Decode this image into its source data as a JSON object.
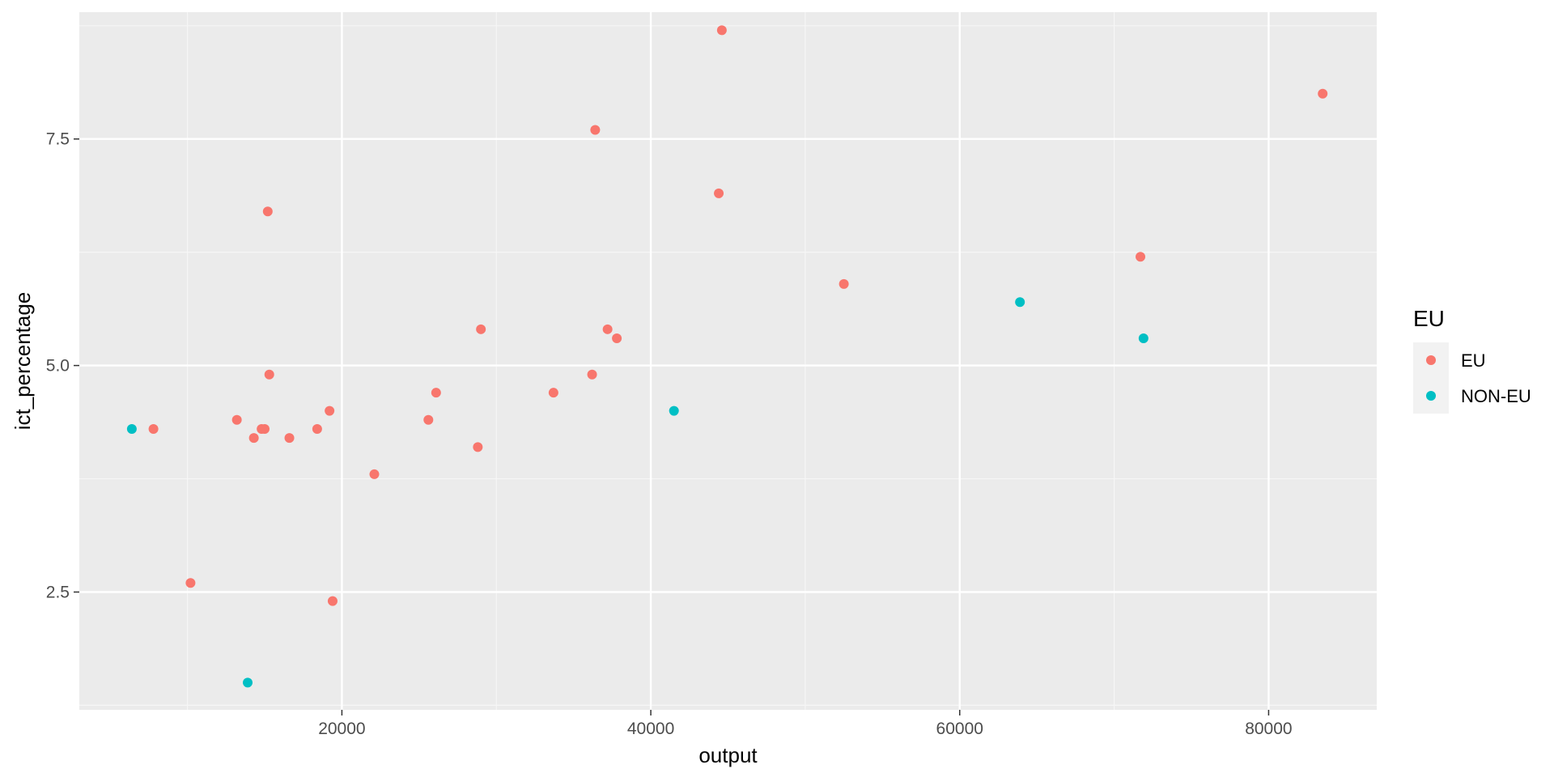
{
  "chart_data": {
    "type": "scatter",
    "title": "",
    "xlabel": "output",
    "ylabel": "ict_percentage",
    "xlim": [
      3000,
      87000
    ],
    "ylim": [
      1.2,
      8.9
    ],
    "x_ticks": [
      20000,
      40000,
      60000,
      80000
    ],
    "x_tick_labels": [
      "20000",
      "40000",
      "60000",
      "80000"
    ],
    "y_ticks": [
      2.5,
      5.0,
      7.5
    ],
    "y_tick_labels": [
      "2.5",
      "5.0",
      "7.5"
    ],
    "x_minor_ticks": [
      10000,
      30000,
      50000,
      70000
    ],
    "y_minor_ticks": [
      1.25,
      3.75,
      6.25,
      8.75
    ],
    "grid": true,
    "legend": {
      "title": "EU",
      "position": "right",
      "entries": [
        {
          "label": "EU",
          "color": "#F8766D"
        },
        {
          "label": "NON-EU",
          "color": "#00BFC4"
        }
      ]
    },
    "colors": {
      "panel_background": "#EBEBEB",
      "grid_major": "#FFFFFF",
      "grid_minor": "#F6F6F6",
      "legend_key_background": "#F2F2F2",
      "tick_mark": "#333333"
    },
    "series": [
      {
        "name": "EU",
        "color": "#F8766D",
        "points": [
          {
            "x": 7800,
            "y": 4.3
          },
          {
            "x": 10200,
            "y": 2.6
          },
          {
            "x": 13200,
            "y": 4.4
          },
          {
            "x": 14300,
            "y": 4.2
          },
          {
            "x": 14800,
            "y": 4.3
          },
          {
            "x": 15000,
            "y": 4.3
          },
          {
            "x": 15200,
            "y": 6.7
          },
          {
            "x": 15300,
            "y": 4.9
          },
          {
            "x": 16600,
            "y": 4.2
          },
          {
            "x": 18400,
            "y": 4.3
          },
          {
            "x": 19200,
            "y": 4.5
          },
          {
            "x": 19400,
            "y": 2.4
          },
          {
            "x": 22100,
            "y": 3.8
          },
          {
            "x": 25600,
            "y": 4.4
          },
          {
            "x": 26100,
            "y": 4.7
          },
          {
            "x": 28800,
            "y": 4.1
          },
          {
            "x": 29000,
            "y": 5.4
          },
          {
            "x": 33700,
            "y": 4.7
          },
          {
            "x": 36200,
            "y": 4.9
          },
          {
            "x": 36400,
            "y": 7.6
          },
          {
            "x": 37200,
            "y": 5.4
          },
          {
            "x": 37800,
            "y": 5.3
          },
          {
            "x": 44400,
            "y": 6.9
          },
          {
            "x": 44600,
            "y": 8.7
          },
          {
            "x": 52500,
            "y": 5.9
          },
          {
            "x": 71700,
            "y": 6.2
          },
          {
            "x": 83500,
            "y": 8.0
          }
        ]
      },
      {
        "name": "NON-EU",
        "color": "#00BFC4",
        "points": [
          {
            "x": 6400,
            "y": 4.3
          },
          {
            "x": 13900,
            "y": 1.5
          },
          {
            "x": 41500,
            "y": 4.5
          },
          {
            "x": 63900,
            "y": 5.7
          },
          {
            "x": 71900,
            "y": 5.3
          }
        ]
      }
    ]
  }
}
